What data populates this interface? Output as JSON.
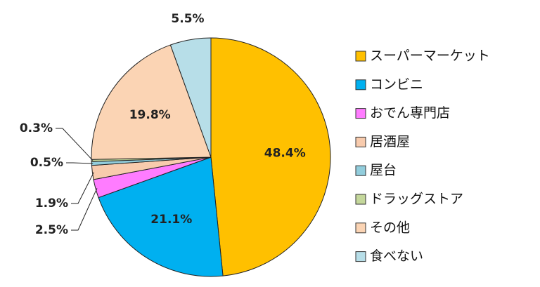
{
  "chart_data": {
    "type": "pie",
    "categories": [
      "スーパーマーケット",
      "コンビニ",
      "おでん専門店",
      "居酒屋",
      "屋台",
      "ドラッグストア",
      "その他",
      "食べない"
    ],
    "values": [
      48.4,
      21.1,
      2.5,
      1.9,
      0.5,
      0.3,
      19.8,
      5.5
    ],
    "value_labels": [
      "48.4%",
      "21.1%",
      "2.5%",
      "1.9%",
      "0.5%",
      "0.3%",
      "19.8%",
      "5.5%"
    ],
    "colors": [
      "#FFC000",
      "#00B0F0",
      "#FF7CFF",
      "#F8CBAD",
      "#92CDDC",
      "#C4D79B",
      "#FBD4B4",
      "#B7DEE8"
    ],
    "legend": "right"
  }
}
